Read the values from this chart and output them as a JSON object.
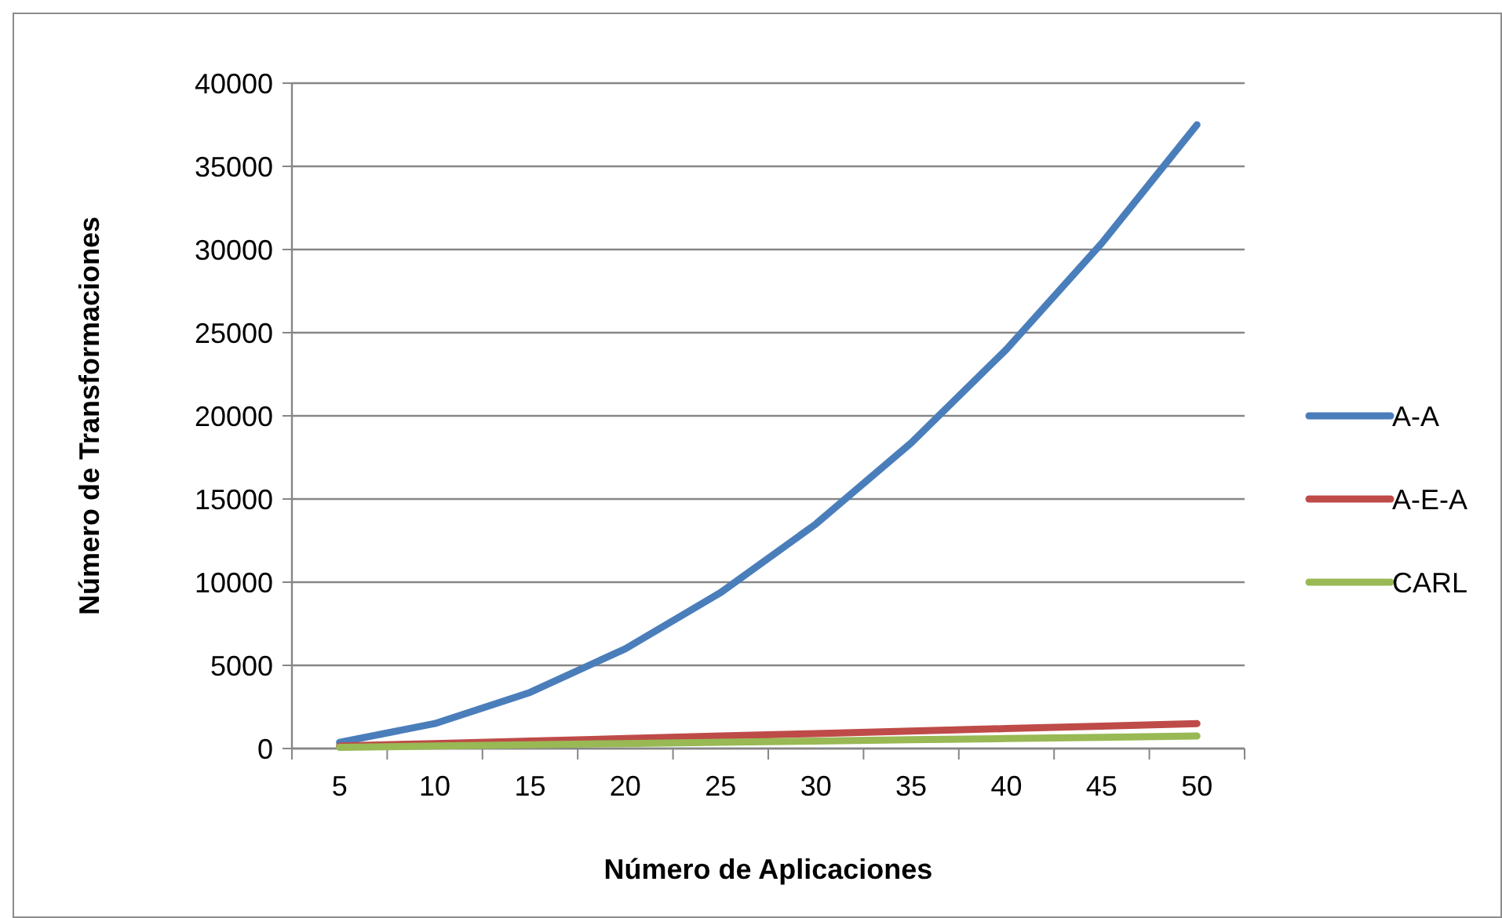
{
  "chart_data": {
    "type": "line",
    "xlabel": "Número de Aplicaciones",
    "ylabel": "Número de Transformaciones",
    "categories": [
      "5",
      "10",
      "15",
      "20",
      "25",
      "30",
      "35",
      "40",
      "45",
      "50"
    ],
    "series": [
      {
        "name": "A-A",
        "color": "#4a7ebb",
        "values": [
          375,
          1500,
          3375,
          6000,
          9375,
          13500,
          18375,
          24000,
          30375,
          37500
        ]
      },
      {
        "name": "A-E-A",
        "color": "#be4b48",
        "values": [
          150,
          300,
          450,
          600,
          750,
          900,
          1050,
          1200,
          1350,
          1500
        ]
      },
      {
        "name": "CARL",
        "color": "#98b954",
        "values": [
          75,
          150,
          225,
          300,
          375,
          450,
          525,
          600,
          675,
          750
        ]
      }
    ],
    "ylim": [
      0,
      40000
    ],
    "yticks": [
      0,
      5000,
      10000,
      15000,
      20000,
      25000,
      30000,
      35000,
      40000
    ],
    "grid": "y",
    "legend": "right",
    "marker": "none",
    "line_style": "solid"
  }
}
